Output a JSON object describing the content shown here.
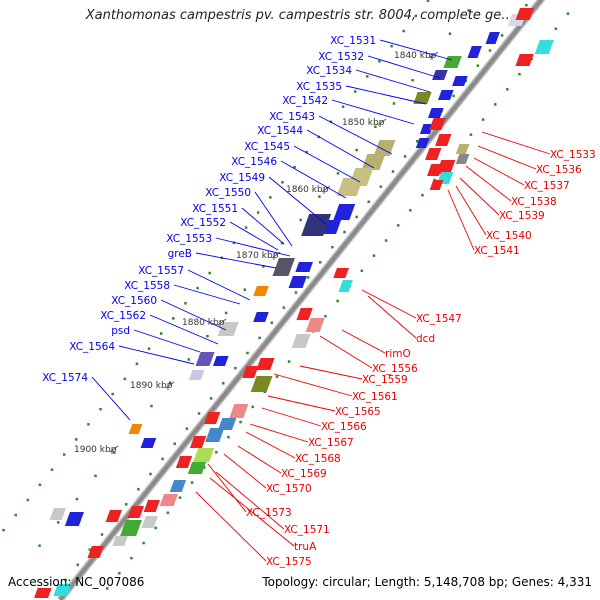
{
  "title": "Xanthomonas campestris pv. campestris str. 8004, complete ge…",
  "accession": "Accession: NC_007086",
  "summary": "Topology: circular; Length: 5,148,708 bp; Genes: 4,331",
  "colors": {
    "plus_label": "#0000ee",
    "minus_label": "#ee0000",
    "backbone": "#8a8a8a",
    "tick": "#2a8a2a"
  },
  "ticks": [
    {
      "label": "1840 kbp"
    },
    {
      "label": "1850 kbp"
    },
    {
      "label": "1860 kbp"
    },
    {
      "label": "1870 kbp"
    },
    {
      "label": "1880 kbp"
    },
    {
      "label": "1890 kbp"
    },
    {
      "label": "1900 kbp"
    }
  ],
  "plus_genes": [
    {
      "label": "XC_1531"
    },
    {
      "label": "XC_1532"
    },
    {
      "label": "XC_1534"
    },
    {
      "label": "XC_1535"
    },
    {
      "label": "XC_1542"
    },
    {
      "label": "XC_1543"
    },
    {
      "label": "XC_1544"
    },
    {
      "label": "XC_1545"
    },
    {
      "label": "XC_1546"
    },
    {
      "label": "XC_1549"
    },
    {
      "label": "XC_1550"
    },
    {
      "label": "XC_1551"
    },
    {
      "label": "XC_1552"
    },
    {
      "label": "XC_1553"
    },
    {
      "label": "greB"
    },
    {
      "label": "XC_1557"
    },
    {
      "label": "XC_1558"
    },
    {
      "label": "XC_1560"
    },
    {
      "label": "XC_1562"
    },
    {
      "label": "psd"
    },
    {
      "label": "XC_1564"
    },
    {
      "label": "XC_1574"
    }
  ],
  "minus_genes": [
    {
      "label": "XC_1533"
    },
    {
      "label": "XC_1536"
    },
    {
      "label": "XC_1537"
    },
    {
      "label": "XC_1538"
    },
    {
      "label": "XC_1539"
    },
    {
      "label": "XC_1540"
    },
    {
      "label": "XC_1541"
    },
    {
      "label": "XC_1547"
    },
    {
      "label": "dcd"
    },
    {
      "label": "rimO"
    },
    {
      "label": "XC_1556"
    },
    {
      "label": "XC_1559"
    },
    {
      "label": "XC_1561"
    },
    {
      "label": "XC_1565"
    },
    {
      "label": "XC_1566"
    },
    {
      "label": "XC_1567"
    },
    {
      "label": "XC_1568"
    },
    {
      "label": "XC_1569"
    },
    {
      "label": "XC_1570"
    },
    {
      "label": "XC_1573"
    },
    {
      "label": "XC_1571"
    },
    {
      "label": "truA"
    },
    {
      "label": "XC_1575"
    }
  ]
}
